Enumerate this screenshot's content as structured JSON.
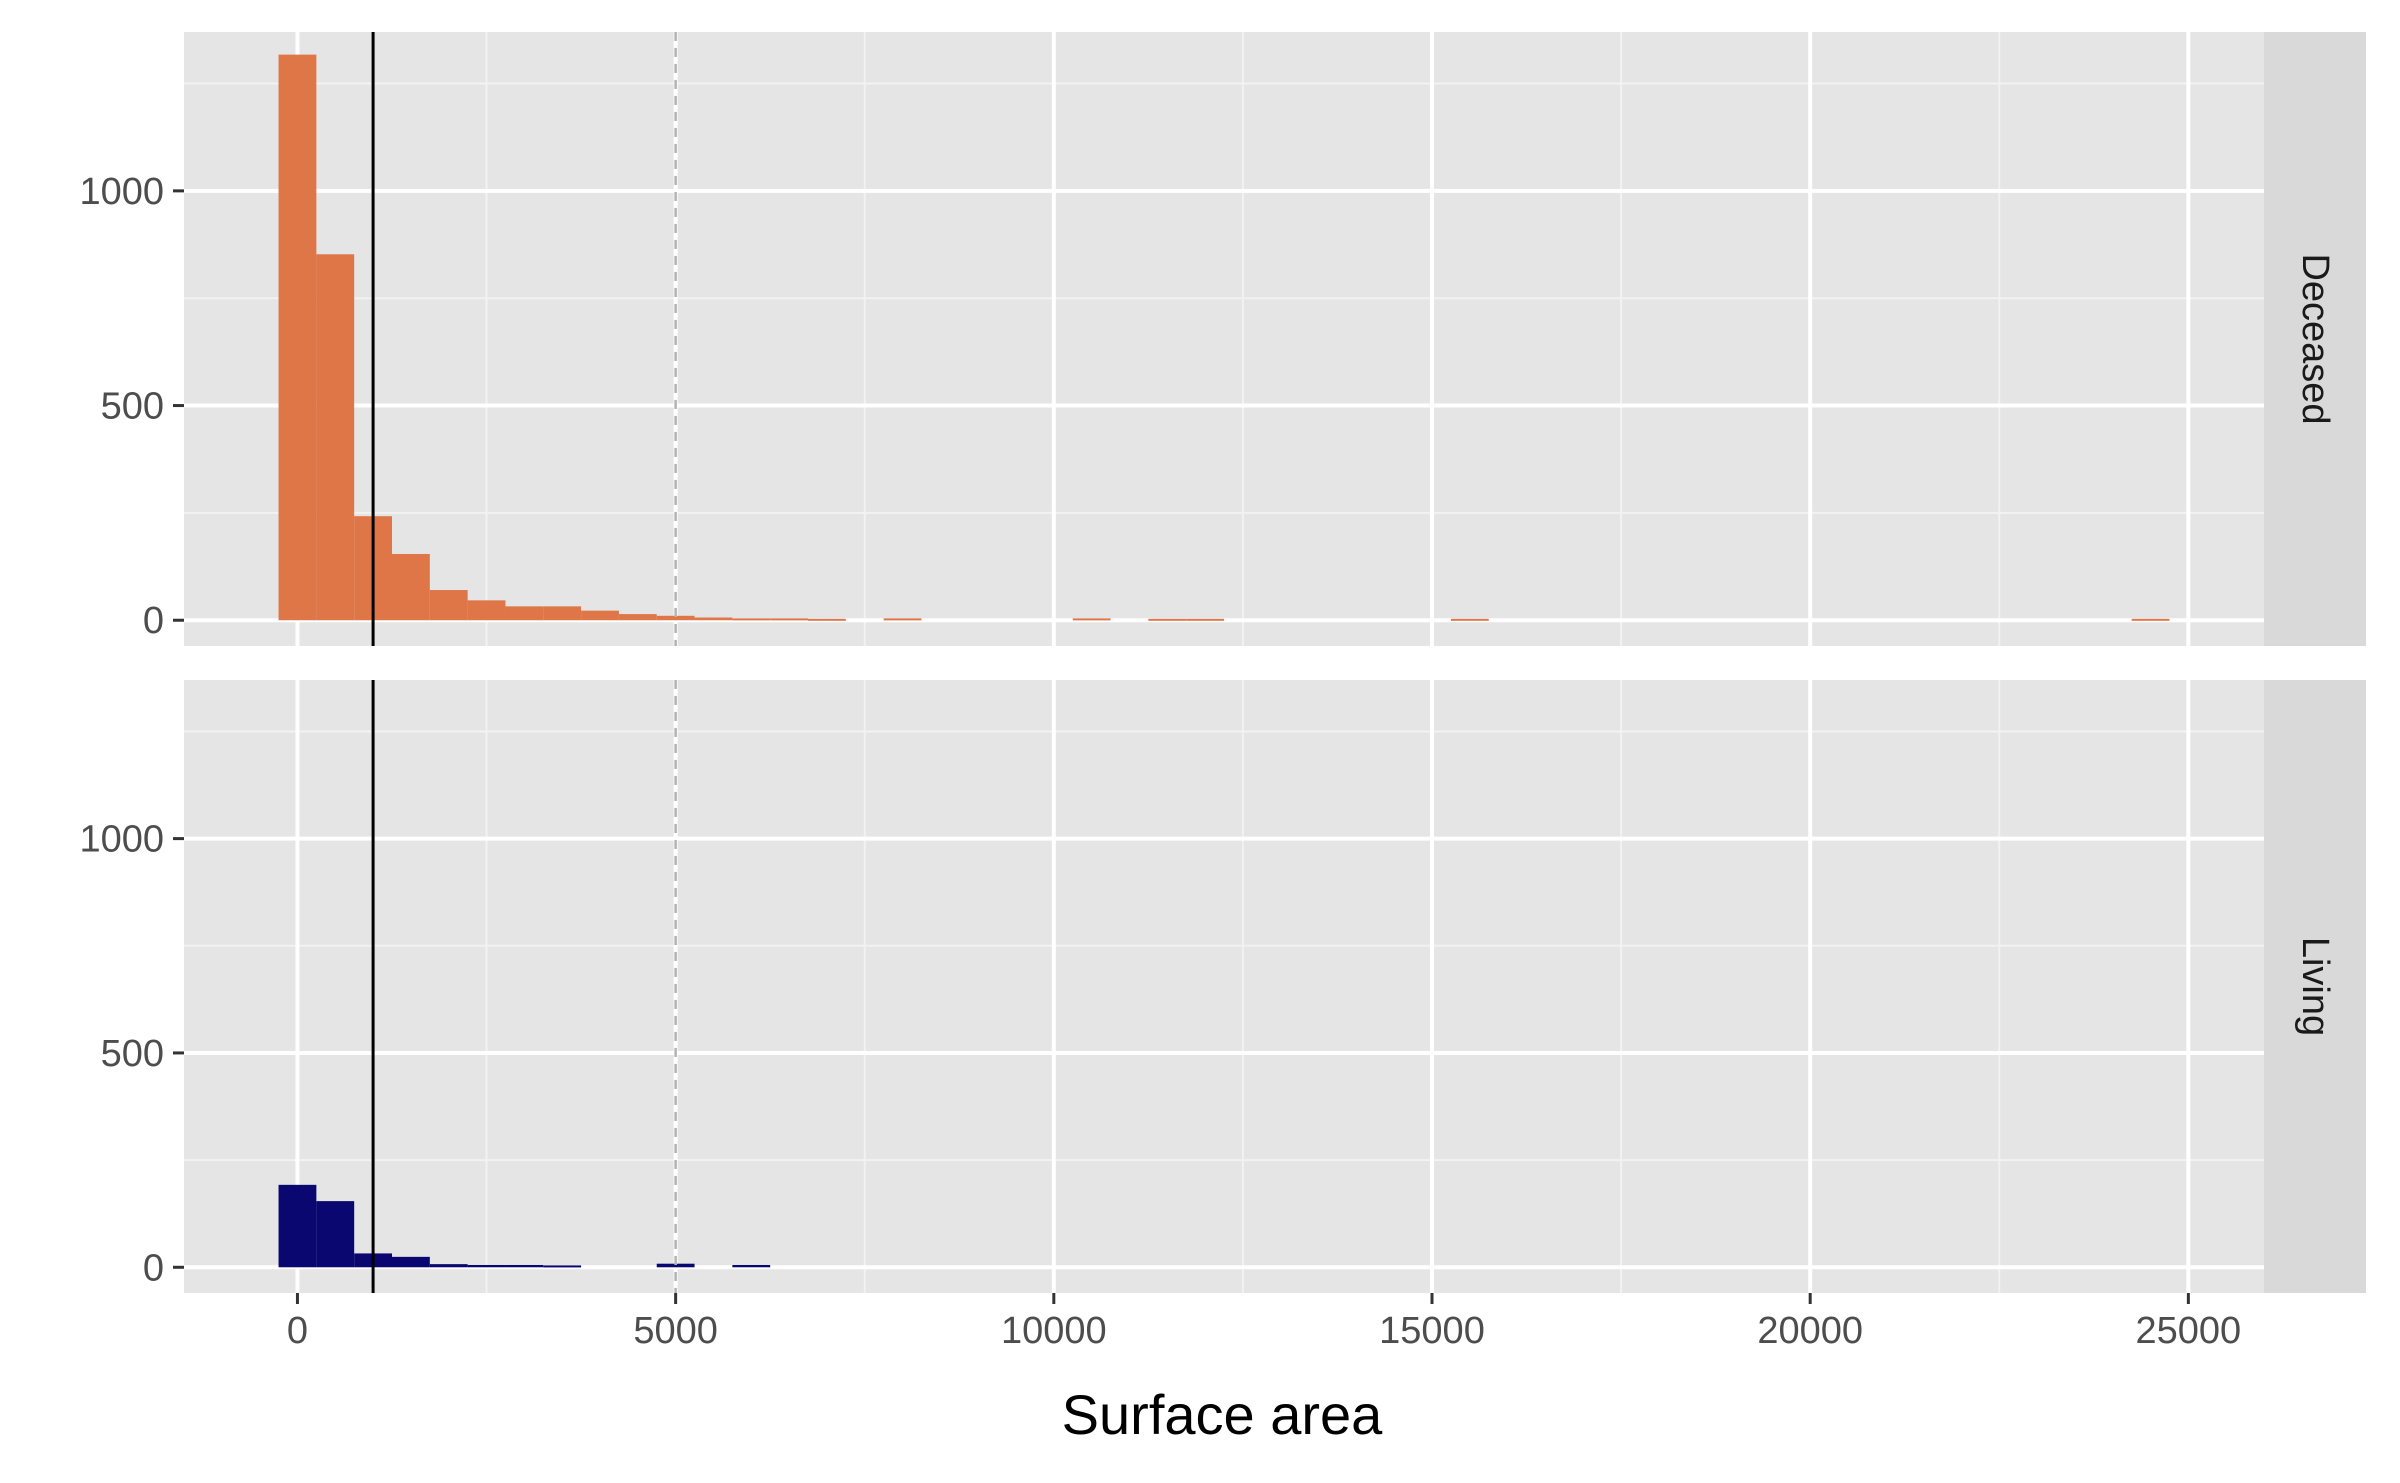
{
  "chart_data": {
    "type": "bar",
    "subtype": "faceted-histogram",
    "title": "",
    "xlabel": "Surface area",
    "ylabel": "",
    "xlim": [
      -1500,
      26000
    ],
    "ylim": [
      -60,
      1370
    ],
    "x_ticks": [
      0,
      5000,
      10000,
      15000,
      20000,
      25000
    ],
    "x_minor_ticks": [
      2500,
      7500,
      12500,
      17500,
      22500
    ],
    "y_ticks": [
      0,
      500,
      1000
    ],
    "y_minor_ticks": [
      250,
      750,
      1250
    ],
    "bin_width": 500,
    "grid": true,
    "vlines": [
      {
        "x": 1000,
        "style": "solid",
        "color": "#000000"
      },
      {
        "x": 5000,
        "style": "dashed",
        "color": "#b3b3b3"
      }
    ],
    "facets": [
      {
        "label": "Deceased",
        "color": "#de7648",
        "bins": [
          {
            "x": 0,
            "count": 1315
          },
          {
            "x": 500,
            "count": 850
          },
          {
            "x": 1000,
            "count": 240
          },
          {
            "x": 1500,
            "count": 152
          },
          {
            "x": 2000,
            "count": 68
          },
          {
            "x": 2500,
            "count": 44
          },
          {
            "x": 3000,
            "count": 30
          },
          {
            "x": 3500,
            "count": 30
          },
          {
            "x": 4000,
            "count": 20
          },
          {
            "x": 4500,
            "count": 12
          },
          {
            "x": 5000,
            "count": 8
          },
          {
            "x": 5500,
            "count": 4
          },
          {
            "x": 6000,
            "count": 2
          },
          {
            "x": 6500,
            "count": 2
          },
          {
            "x": 7000,
            "count": 1
          },
          {
            "x": 8000,
            "count": 2
          },
          {
            "x": 10500,
            "count": 2
          },
          {
            "x": 11500,
            "count": 1
          },
          {
            "x": 12000,
            "count": 1
          },
          {
            "x": 15500,
            "count": 1
          },
          {
            "x": 24500,
            "count": 1
          }
        ]
      },
      {
        "label": "Living",
        "color": "#0a0870",
        "bins": [
          {
            "x": 0,
            "count": 190
          },
          {
            "x": 500,
            "count": 152
          },
          {
            "x": 1000,
            "count": 30
          },
          {
            "x": 1500,
            "count": 22
          },
          {
            "x": 2000,
            "count": 5
          },
          {
            "x": 2500,
            "count": 3
          },
          {
            "x": 3000,
            "count": 3
          },
          {
            "x": 3500,
            "count": 2
          },
          {
            "x": 5000,
            "count": 6
          },
          {
            "x": 6000,
            "count": 3
          }
        ]
      }
    ]
  }
}
